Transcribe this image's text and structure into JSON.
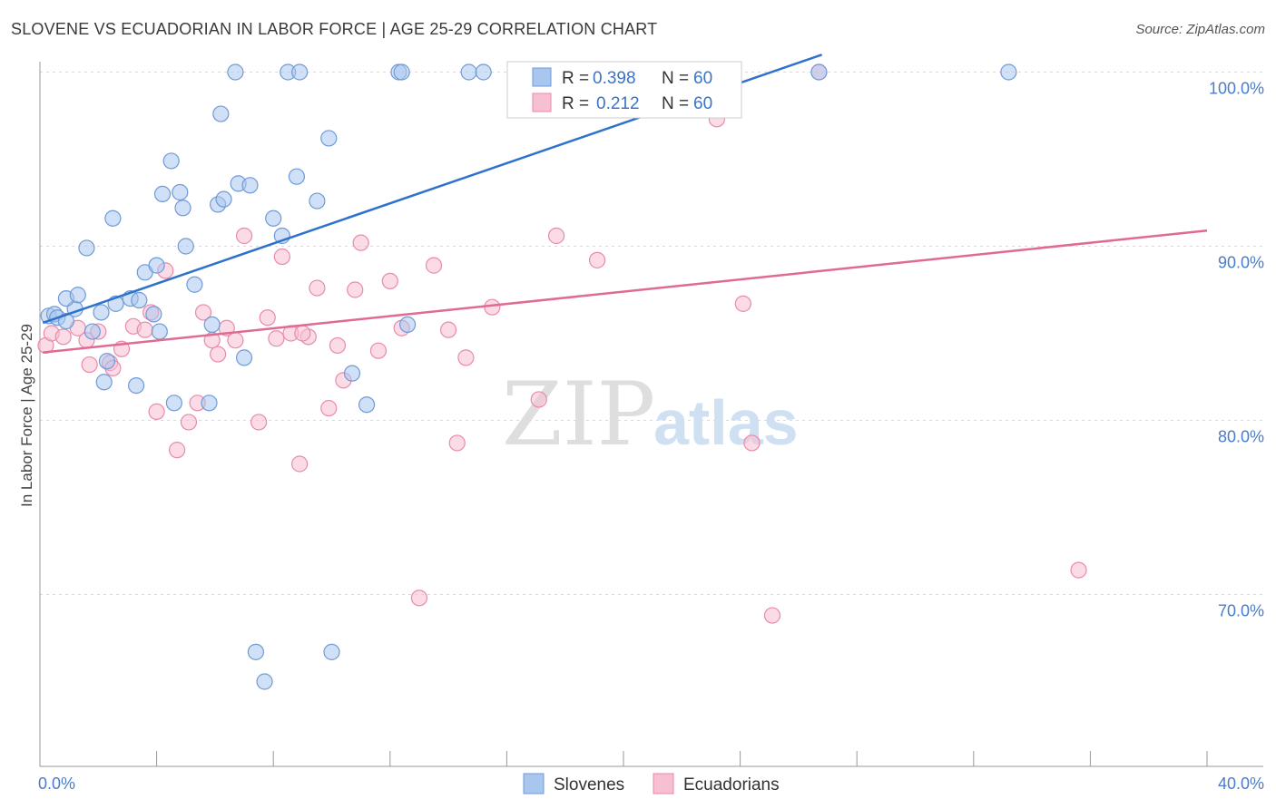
{
  "title": "SLOVENE VS ECUADORIAN IN LABOR FORCE | AGE 25-29 CORRELATION CHART",
  "source": "Source: ZipAtlas.com",
  "watermark": {
    "zip": "ZIP",
    "atlas": "atlas"
  },
  "colors": {
    "blue_fill": "#a9c6ef",
    "blue_stroke": "#6f9ad8",
    "blue_line": "#2f72cc",
    "pink_fill": "#f7c0d2",
    "pink_stroke": "#e98aab",
    "pink_line": "#e06a93",
    "tick_text": "#4a7cc9",
    "grid": "#d9d9d9"
  },
  "legend": {
    "blue": {
      "r_label": "R = ",
      "r_value": "0.398",
      "n_label": "N = ",
      "n_value": "60"
    },
    "pink": {
      "r_label": "R = ",
      "r_value": "0.212",
      "n_label": "N = ",
      "n_value": "60"
    }
  },
  "chart_data": {
    "type": "scatter",
    "title": "SLOVENE VS ECUADORIAN IN LABOR FORCE | AGE 25-29 CORRELATION CHART",
    "xlabel": "",
    "ylabel": "In Labor Force | Age 25-29",
    "xlim": [
      0,
      40
    ],
    "ylim": [
      61.5,
      102
    ],
    "x_tick_labels": [
      {
        "value": 0,
        "label": "0.0%"
      },
      {
        "value": 40,
        "label": "40.0%"
      }
    ],
    "y_tick_labels": [
      {
        "value": 100,
        "label": "100.0%"
      },
      {
        "value": 90,
        "label": "90.0%"
      },
      {
        "value": 80,
        "label": "80.0%"
      },
      {
        "value": 70,
        "label": "70.0%"
      }
    ],
    "grid": true,
    "legend_position": "top-center",
    "series": [
      {
        "name": "Slovenes",
        "color": "#a9c6ef",
        "trend": {
          "x": [
            0.1,
            26.8
          ],
          "y": [
            85.6,
            101.0
          ]
        },
        "points": [
          [
            0.3,
            86.0
          ],
          [
            0.5,
            86.1
          ],
          [
            0.6,
            85.9
          ],
          [
            0.9,
            85.7
          ],
          [
            1.2,
            86.4
          ],
          [
            0.9,
            87.0
          ],
          [
            1.3,
            87.2
          ],
          [
            2.1,
            86.2
          ],
          [
            1.8,
            85.1
          ],
          [
            2.3,
            83.4
          ],
          [
            2.2,
            82.2
          ],
          [
            3.3,
            82.0
          ],
          [
            2.6,
            86.7
          ],
          [
            3.1,
            87.0
          ],
          [
            3.4,
            86.9
          ],
          [
            3.9,
            86.1
          ],
          [
            4.1,
            85.1
          ],
          [
            3.6,
            88.5
          ],
          [
            4.0,
            88.9
          ],
          [
            1.6,
            89.9
          ],
          [
            2.5,
            91.6
          ],
          [
            4.2,
            93.0
          ],
          [
            4.5,
            94.9
          ],
          [
            4.8,
            93.1
          ],
          [
            4.9,
            92.2
          ],
          [
            5.0,
            90.0
          ],
          [
            5.3,
            87.8
          ],
          [
            5.9,
            85.5
          ],
          [
            6.1,
            92.4
          ],
          [
            6.3,
            92.7
          ],
          [
            6.2,
            97.6
          ],
          [
            6.7,
            100.0
          ],
          [
            6.8,
            93.6
          ],
          [
            7.2,
            93.5
          ],
          [
            7.0,
            83.6
          ],
          [
            8.0,
            91.6
          ],
          [
            8.3,
            90.6
          ],
          [
            8.5,
            100.0
          ],
          [
            8.9,
            100.0
          ],
          [
            8.8,
            94.0
          ],
          [
            9.5,
            92.6
          ],
          [
            9.9,
            96.2
          ],
          [
            10.7,
            82.7
          ],
          [
            11.2,
            80.9
          ],
          [
            12.3,
            100.0
          ],
          [
            12.4,
            100.0
          ],
          [
            12.6,
            85.5
          ],
          [
            14.7,
            100.0
          ],
          [
            15.2,
            100.0
          ],
          [
            5.8,
            81.0
          ],
          [
            7.7,
            65.0
          ],
          [
            7.4,
            66.7
          ],
          [
            10.0,
            66.7
          ],
          [
            18.1,
            100.0
          ],
          [
            20.9,
            100.0
          ],
          [
            23.1,
            100.0
          ],
          [
            26.7,
            100.0
          ],
          [
            33.2,
            100.0
          ],
          [
            22.4,
            100.0
          ],
          [
            4.6,
            81.0
          ]
        ]
      },
      {
        "name": "Ecuadorians",
        "color": "#f7c0d2",
        "trend": {
          "x": [
            0.1,
            40.0
          ],
          "y": [
            83.9,
            90.9
          ]
        },
        "points": [
          [
            0.2,
            84.3
          ],
          [
            0.4,
            85.0
          ],
          [
            0.8,
            84.8
          ],
          [
            1.3,
            85.3
          ],
          [
            1.6,
            84.6
          ],
          [
            1.7,
            83.2
          ],
          [
            2.0,
            85.1
          ],
          [
            2.4,
            83.3
          ],
          [
            2.5,
            83.0
          ],
          [
            2.8,
            84.1
          ],
          [
            3.2,
            85.4
          ],
          [
            3.6,
            85.2
          ],
          [
            3.8,
            86.2
          ],
          [
            4.3,
            88.6
          ],
          [
            4.0,
            80.5
          ],
          [
            4.7,
            78.3
          ],
          [
            5.1,
            79.9
          ],
          [
            5.4,
            81.0
          ],
          [
            5.6,
            86.2
          ],
          [
            5.9,
            84.6
          ],
          [
            6.1,
            83.8
          ],
          [
            6.4,
            85.3
          ],
          [
            6.7,
            84.6
          ],
          [
            7.0,
            90.6
          ],
          [
            7.5,
            79.9
          ],
          [
            7.8,
            85.9
          ],
          [
            8.1,
            84.7
          ],
          [
            8.3,
            89.4
          ],
          [
            8.6,
            85.0
          ],
          [
            8.9,
            77.5
          ],
          [
            9.2,
            84.8
          ],
          [
            9.5,
            87.6
          ],
          [
            9.9,
            80.7
          ],
          [
            10.2,
            84.3
          ],
          [
            10.4,
            82.3
          ],
          [
            10.8,
            87.5
          ],
          [
            11.0,
            90.2
          ],
          [
            11.6,
            84.0
          ],
          [
            12.0,
            88.0
          ],
          [
            12.4,
            85.3
          ],
          [
            13.0,
            69.8
          ],
          [
            13.5,
            88.9
          ],
          [
            14.0,
            85.2
          ],
          [
            14.3,
            78.7
          ],
          [
            14.6,
            83.6
          ],
          [
            15.5,
            86.5
          ],
          [
            17.1,
            81.2
          ],
          [
            17.7,
            90.6
          ],
          [
            19.1,
            89.2
          ],
          [
            21.3,
            100.0
          ],
          [
            22.4,
            100.0
          ],
          [
            23.2,
            97.3
          ],
          [
            24.1,
            86.7
          ],
          [
            24.4,
            78.7
          ],
          [
            25.1,
            68.8
          ],
          [
            26.7,
            100.0
          ],
          [
            35.6,
            71.4
          ],
          [
            20.8,
            100.0
          ],
          [
            22.9,
            100.0
          ],
          [
            9.0,
            85.0
          ]
        ]
      }
    ]
  }
}
